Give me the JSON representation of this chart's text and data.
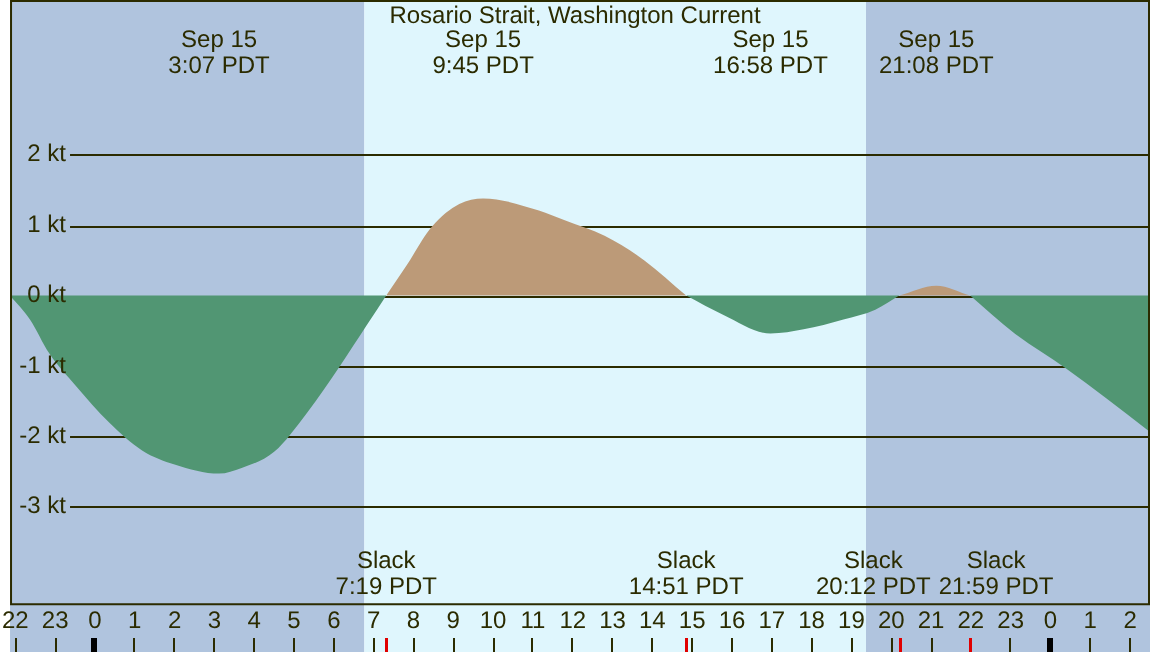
{
  "chart_data": {
    "type": "area",
    "title": "Rosario Strait, Washington Current",
    "x": [
      "--09-14T21:52",
      "--09-14T22:22",
      "--09-14T22:51",
      "--09-14T23:30",
      "--09-15T00:21",
      "--09-15T01:11",
      "--09-15T02:00",
      "--09-15T03:07",
      "--09-15T03:41",
      "--09-15T04:30",
      "--09-15T05:20",
      "--09-15T06:10",
      "--09-15T06:49",
      "--09-15T07:19",
      "--09-15T07:49",
      "--09-15T08:28",
      "--09-15T09:09",
      "--09-15T09:45",
      "--09-15T11:09",
      "--09-15T11:48",
      "--09-15T12:48",
      "--09-15T13:48",
      "--09-15T14:51",
      "--09-15T15:48",
      "--09-15T16:58",
      "--09-15T17:48",
      "--09-15T18:48",
      "--09-15T19:36",
      "--09-15T20:12",
      "--09-15T21:08",
      "--09-15T21:59",
      "--09-15T23:06",
      "--09-16T00:24",
      "--09-16T01:24",
      "--09-16T02:30"
    ],
    "series": [
      {
        "color": "#519673",
        "values": [
          0,
          -0.34,
          -0.82,
          -1.27,
          -1.8,
          -2.2,
          -2.4,
          -2.53,
          -2.45,
          -2.22,
          -1.66,
          -0.99,
          -0.43,
          0,
          null,
          null,
          null,
          null,
          null,
          null,
          null,
          null,
          0,
          -0.28,
          -0.54,
          -0.48,
          -0.34,
          -0.2,
          0,
          null,
          0,
          -0.54,
          -1.04,
          -1.46,
          -1.94
        ]
      },
      {
        "color": "#bc9a78",
        "values": [
          null,
          null,
          null,
          null,
          null,
          null,
          null,
          null,
          null,
          null,
          null,
          null,
          null,
          0,
          0.42,
          0.98,
          1.3,
          1.38,
          1.21,
          1.07,
          0.85,
          0.5,
          0,
          null,
          null,
          null,
          null,
          null,
          0,
          0.14,
          0,
          null,
          null,
          null,
          null
        ]
      }
    ],
    "xlim": [
      "--09-14T21:52",
      "--09-16T02:30"
    ],
    "xticks": [
      {
        "value": "--09-14T22:00",
        "label": "22"
      },
      {
        "value": "--09-14T23:00",
        "label": "23"
      },
      {
        "value": "--09-15T00:00",
        "label": "0"
      },
      {
        "value": "--09-15T01:00",
        "label": "1"
      },
      {
        "value": "--09-15T02:00",
        "label": "2"
      },
      {
        "value": "--09-15T03:00",
        "label": "3"
      },
      {
        "value": "--09-15T04:00",
        "label": "4"
      },
      {
        "value": "--09-15T05:00",
        "label": "5"
      },
      {
        "value": "--09-15T06:00",
        "label": "6"
      },
      {
        "value": "--09-15T07:00",
        "label": "7"
      },
      {
        "value": "--09-15T08:00",
        "label": "8"
      },
      {
        "value": "--09-15T09:00",
        "label": "9"
      },
      {
        "value": "--09-15T10:00",
        "label": "10"
      },
      {
        "value": "--09-15T11:00",
        "label": "11"
      },
      {
        "value": "--09-15T12:00",
        "label": "12"
      },
      {
        "value": "--09-15T13:00",
        "label": "13"
      },
      {
        "value": "--09-15T14:00",
        "label": "14"
      },
      {
        "value": "--09-15T15:00",
        "label": "15"
      },
      {
        "value": "--09-15T16:00",
        "label": "16"
      },
      {
        "value": "--09-15T17:00",
        "label": "17"
      },
      {
        "value": "--09-15T18:00",
        "label": "18"
      },
      {
        "value": "--09-15T19:00",
        "label": "19"
      },
      {
        "value": "--09-15T20:00",
        "label": "20"
      },
      {
        "value": "--09-15T21:00",
        "label": "21"
      },
      {
        "value": "--09-15T22:00",
        "label": "22"
      },
      {
        "value": "--09-15T23:00",
        "label": "23"
      },
      {
        "value": "--09-16T00:00",
        "label": "0"
      },
      {
        "value": "--09-16T01:00",
        "label": "1"
      },
      {
        "value": "--09-16T02:00",
        "label": "2"
      }
    ],
    "ylim": [
      -4.4,
      4.2
    ],
    "yticks": [
      {
        "value": -3,
        "label": "-3 kt"
      },
      {
        "value": -2,
        "label": "-2 kt"
      },
      {
        "value": -1,
        "label": "-1 kt"
      },
      {
        "value": 0,
        "label": "0 kt"
      },
      {
        "value": 1,
        "label": "1 kt"
      },
      {
        "value": 2,
        "label": "2 kt"
      }
    ],
    "grid": "y",
    "bands": [
      {
        "axis": "x",
        "from": "--09-14T21:52",
        "to": "--09-15T06:46",
        "color": "#b0c4de"
      },
      {
        "axis": "x",
        "from": "--09-15T06:46",
        "to": "--09-15T19:22",
        "color": "#dff6fd"
      },
      {
        "axis": "x",
        "from": "--09-15T19:22",
        "to": "--09-16T02:30",
        "color": "#b0c4de"
      }
    ],
    "annotations": [
      "Sep 15\n3:07 PDT",
      "Slack\n7:19 PDT",
      "Sep 15\n9:45 PDT",
      "Slack\n14:51 PDT",
      "Sep 15\n16:58 PDT",
      "Slack\n20:12 PDT",
      "Sep 15\n21:08 PDT",
      "Slack\n21:59 PDT"
    ]
  }
}
